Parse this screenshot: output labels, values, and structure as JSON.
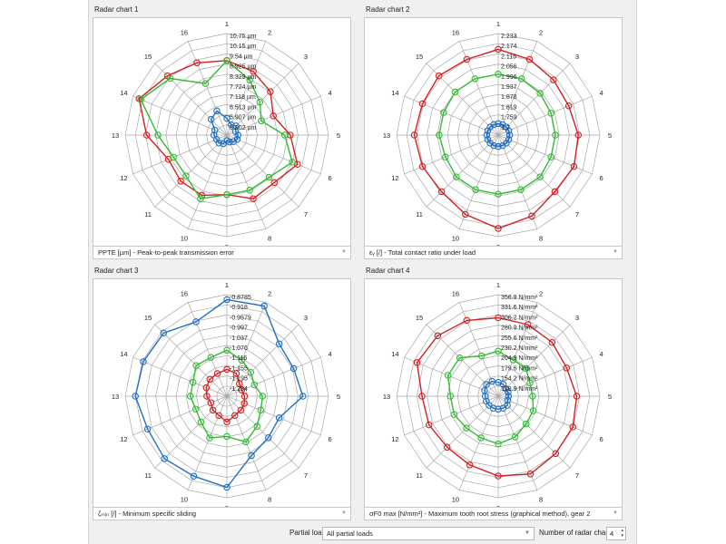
{
  "colors": {
    "red": "#d42020",
    "green": "#33bb33",
    "blue": "#1f6fc4",
    "grid": "#a8a8a8"
  },
  "chart_data": [
    {
      "type": "radar",
      "panel_title": "Radar chart 1",
      "axes": [
        "1",
        "2",
        "3",
        "4",
        "5",
        "6",
        "7",
        "8",
        "9",
        "10",
        "11",
        "12",
        "13",
        "14",
        "15",
        "16"
      ],
      "ring_labels": [
        "10.75 µm",
        "10.15 µm",
        "9.54 µm",
        "8.925 µm",
        "8.329 µm",
        "7.724 µm",
        "7.118 µm",
        "6.513 µm",
        "5.907 µm",
        "5.302 µm"
      ],
      "range": [
        5.302,
        10.75
      ],
      "series": [
        {
          "color": "red",
          "values": [
            9.3,
            9.0,
            8.6,
            8.0,
            8.7,
            9.4,
            8.9,
            9.0,
            8.5,
            8.8,
            8.8,
            8.7,
            9.6,
            10.4,
            9.8,
            9.5
          ]
        },
        {
          "color": "green",
          "values": [
            9.3,
            8.5,
            7.8,
            7.3,
            8.4,
            9.1,
            8.5,
            8.5,
            8.5,
            9.0,
            8.4,
            8.4,
            9.0,
            10.3,
            9.6,
            8.3
          ]
        },
        {
          "color": "blue",
          "values": [
            6.2,
            5.9,
            6.0,
            5.8,
            5.9,
            5.9,
            5.8,
            5.7,
            5.6,
            5.8,
            5.9,
            5.9,
            6.0,
            6.0,
            6.5,
            6.7
          ]
        }
      ],
      "selector": "PPTE [µm] - Peak-to-peak transmission error"
    },
    {
      "type": "radar",
      "panel_title": "Radar chart 2",
      "axes": [
        "1",
        "2",
        "3",
        "4",
        "5",
        "6",
        "7",
        "8",
        "9",
        "10",
        "11",
        "12",
        "13",
        "14",
        "15",
        "16"
      ],
      "ring_labels": [
        "2.233",
        "2.174",
        "2.115",
        "2.056",
        "1.996",
        "1.937",
        "1.878",
        "1.819",
        "1.759",
        "1.7"
      ],
      "range": [
        1.7,
        2.233
      ],
      "series": [
        {
          "color": "red",
          "values": [
            2.15,
            2.13,
            2.11,
            2.1,
            2.12,
            2.13,
            2.12,
            2.16,
            2.19,
            2.15,
            2.12,
            2.13,
            2.14,
            2.13,
            2.14,
            2.13
          ]
        },
        {
          "color": "green",
          "values": [
            2.02,
            2.02,
            2.01,
            2.0,
            2.0,
            2.0,
            2.01,
            2.01,
            2.01,
            2.01,
            2.01,
            2.0,
            2.01,
            2.01,
            2.02,
            2.02
          ]
        },
        {
          "color": "blue",
          "values": [
            1.76,
            1.76,
            1.76,
            1.76,
            1.76,
            1.76,
            1.76,
            1.76,
            1.76,
            1.76,
            1.76,
            1.76,
            1.76,
            1.76,
            1.76,
            1.76
          ]
        }
      ],
      "selector": "εᵧ [/] - Total contact ratio under load"
    },
    {
      "type": "radar",
      "panel_title": "Radar chart 3",
      "axes": [
        "1",
        "2",
        "3",
        "4",
        "5",
        "6",
        "7",
        "8",
        "9",
        "10",
        "11",
        "12",
        "13",
        "14",
        "15",
        "16"
      ],
      "ring_labels": [
        "-0.8785",
        "-0.918",
        "-0.9579",
        "-0.997",
        "-1.037",
        "-1.076",
        "-1.116",
        "-1.155",
        "-1.195",
        "-1.234"
      ],
      "range": [
        -1.234,
        -0.8785
      ],
      "series": [
        {
          "color": "blue",
          "values": [
            -0.896,
            -0.892,
            -0.975,
            -0.981,
            -0.968,
            -1.036,
            -1.029,
            -1.009,
            -0.915,
            -0.931,
            -0.925,
            -0.934,
            -0.914,
            -0.918,
            -0.921,
            -0.952
          ]
        },
        {
          "color": "green",
          "values": [
            -1.073,
            -1.098,
            -1.116,
            -1.13,
            -1.109,
            -1.106,
            -1.085,
            -1.061,
            -1.093,
            -1.076,
            -1.106,
            -1.116,
            -1.106,
            -1.106,
            -1.082,
            -1.087
          ]
        },
        {
          "color": "red",
          "values": [
            -1.14,
            -1.148,
            -1.172,
            -1.178,
            -1.172,
            -1.168,
            -1.165,
            -1.161,
            -1.144,
            -1.161,
            -1.165,
            -1.174,
            -1.164,
            -1.156,
            -1.15,
            -1.148
          ]
        }
      ],
      "selector": "ζₘᵢₙ [/] - Minimum specific sliding"
    },
    {
      "type": "radar",
      "panel_title": "Radar chart 4",
      "axes": [
        "1",
        "2",
        "3",
        "4",
        "5",
        "6",
        "7",
        "8",
        "9",
        "10",
        "11",
        "12",
        "13",
        "14",
        "15",
        "16"
      ],
      "ring_labels": [
        "356.9 N/mm²",
        "331.6 N/mm²",
        "306.2 N/mm²",
        "280.9 N/mm²",
        "255.6 N/mm²",
        "230.2 N/mm²",
        "204.9 N/mm²",
        "179.6 N/mm²",
        "154.2 N/mm²",
        "128.9 N/mm²"
      ],
      "range": [
        128.9,
        356.9
      ],
      "series": [
        {
          "color": "red",
          "values": [
            305,
            303,
            300,
            295,
            305,
            310,
            311,
            318,
            308,
            296,
            291,
            297,
            300,
            326,
            321,
            313
          ]
        },
        {
          "color": "green",
          "values": [
            230,
            217,
            217,
            206,
            206,
            214,
            217,
            228,
            236,
            230,
            230,
            236,
            236,
            251,
            251,
            227
          ]
        },
        {
          "color": "blue",
          "values": [
            160,
            158,
            153,
            153,
            152,
            152,
            158,
            158,
            158,
            158,
            158,
            158,
            158,
            162,
            166,
            165
          ]
        }
      ],
      "selector": "σF0 max [N/mm²] - Maximum tooth root stress (graphical method), gear 2"
    }
  ],
  "bottom": {
    "partial_load_label": "Partial load",
    "partial_load_value": "All partial loads",
    "count_label": "Number of radar charts",
    "count_value": "4"
  }
}
